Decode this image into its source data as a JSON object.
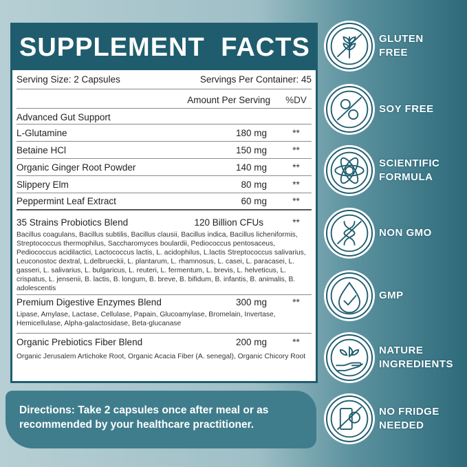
{
  "title": "SUPPLEMENT FACTS",
  "serving_size": "Serving Size: 2 Capsules",
  "servings_per_container": "Servings Per Container: 45",
  "col_amount": "Amount Per Serving",
  "col_dv": "%DV",
  "section": "Advanced Gut Support",
  "rows": [
    {
      "name": "L-Glutamine",
      "amount": "180 mg",
      "dv": "**"
    },
    {
      "name": "Betaine HCl",
      "amount": "150 mg",
      "dv": "**"
    },
    {
      "name": "Organic Ginger Root Powder",
      "amount": "140 mg",
      "dv": "**"
    },
    {
      "name": "Slippery Elm",
      "amount": "80 mg",
      "dv": "**"
    },
    {
      "name": "Peppermint Leaf Extract",
      "amount": "60 mg",
      "dv": "**"
    }
  ],
  "blends": [
    {
      "name": "35 Strains Probiotics Blend",
      "amount": "120 Billion CFUs",
      "dv": "**",
      "details": "Bacillus coagulans, Bacillus subtilis, Bacillus clausii, Bacillus indica, Bacillus licheniformis, Streptococcus thermophilus, Saccharomyces boulardii, Pediococcus pentosaceus, Pediococcus acidilactici, Lactococcus lactis, L. acidophilus, L.lactis Streptococcus salivarius,  Leuconostoc dextral,  L.delbrueckii,  L. plantarum, L. rhamnosus, L. casei, L. paracasei, L. gasseri, L. salivarius, L. bulgaricus, L. reuteri, L. fermentum, L. brevis, L. helveticus, L. crispatus, L. jensenii, B. lactis, B. longum, B. breve, B. bifidum, B. infantis, B. animalis, B. adolescentis"
    },
    {
      "name": "Premium Digestive Enzymes Blend",
      "amount": "300 mg",
      "dv": "**",
      "details": "Lipase, Amylase, Lactase, Cellulase, Papain, Glucoamylase, Bromelain, Invertase, Hemicellulase, Alpha-galactosidase, Beta-glucanase"
    },
    {
      "name": "Organic Prebiotics Fiber Blend",
      "amount": "200 mg",
      "dv": "**",
      "details": "Organic Jerusalem Artichoke Root, Organic Acacia Fiber (A. senegal), Organic Chicory Root"
    }
  ],
  "directions": "Directions: Take 2 capsules once after meal or as recommended by your healthcare practitioner.",
  "badges": [
    {
      "label1": "GLUTEN",
      "label2": "FREE",
      "icon": "wheat-crossed-icon"
    },
    {
      "label1": "SOY FREE",
      "label2": "",
      "icon": "soybean-crossed-icon"
    },
    {
      "label1": "SCIENTIFIC",
      "label2": "FORMULA",
      "icon": "atom-icon"
    },
    {
      "label1": "NON GMO",
      "label2": "",
      "icon": "dna-crossed-icon"
    },
    {
      "label1": "GMP",
      "label2": "",
      "icon": "drop-check-icon"
    },
    {
      "label1": "NATURE",
      "label2": "INGREDIENTS",
      "icon": "hand-leaf-icon"
    },
    {
      "label1": "NO FRIDGE",
      "label2": "NEEDED",
      "icon": "fridge-crossed-icon"
    }
  ],
  "colors": {
    "brand": "#1f5d6e",
    "banner": "#3f7d8c"
  }
}
